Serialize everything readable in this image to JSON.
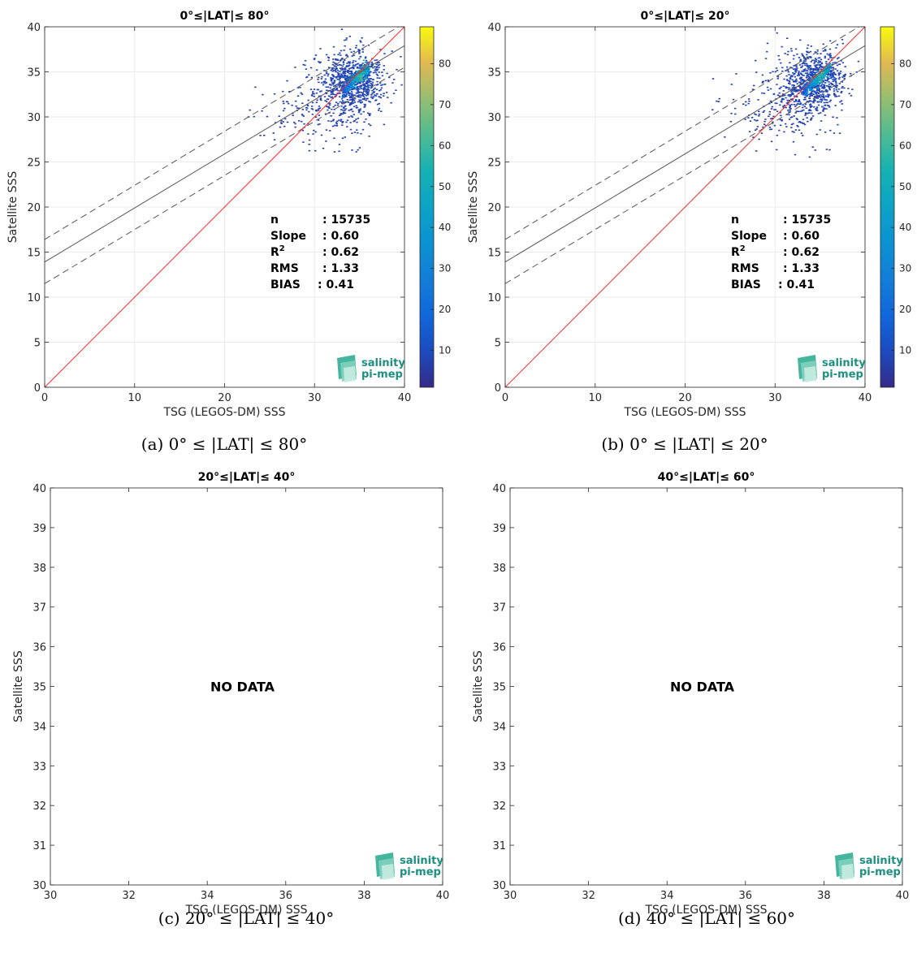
{
  "chart_data": [
    {
      "type": "scatter",
      "panel": "a",
      "title": "0°≤|LAT|≤ 80°",
      "caption": "(a) 0° ≤ |LAT| ≤ 80°",
      "xlabel": "TSG (LEGOS-DM) SSS",
      "ylabel": "Satellite SSS",
      "xlim": [
        0,
        40
      ],
      "ylim": [
        0,
        40
      ],
      "xticks": [
        0,
        10,
        20,
        30,
        40
      ],
      "yticks": [
        0,
        5,
        10,
        15,
        20,
        25,
        30,
        35,
        40
      ],
      "grid": true,
      "lines": {
        "identity": {
          "slope": 1,
          "intercept": 0,
          "color": "#ff2a2a"
        },
        "fit": {
          "slope": 0.6,
          "intercept": 13.9,
          "color": "#555555"
        },
        "fit_upper": {
          "slope": 0.6,
          "intercept": 16.4,
          "color": "#555555"
        },
        "fit_lower": {
          "slope": 0.6,
          "intercept": 11.5,
          "color": "#555555"
        }
      },
      "stats": [
        {
          "label": "n",
          "value": ": 15735"
        },
        {
          "label": "Slope",
          "value": ": 0.60"
        },
        {
          "label": "R",
          "sup": "2",
          "value": ": 0.62"
        },
        {
          "label": "RMS",
          "value": ": 1.33"
        },
        {
          "label": "BIAS",
          "value": ": 0.41"
        }
      ],
      "colorbar": {
        "min": 1,
        "max": 89,
        "ticks": [
          10,
          20,
          30,
          40,
          50,
          60,
          70,
          80
        ]
      },
      "density": [
        {
          "x": 34.5,
          "y": 34.2,
          "sx": 1.6,
          "sy": 1.6,
          "n": 650
        },
        {
          "x": 32.5,
          "y": 32.5,
          "sx": 2.2,
          "sy": 2.4,
          "n": 260
        },
        {
          "x": 29.5,
          "y": 30.8,
          "sx": 3.0,
          "sy": 2.2,
          "n": 110
        }
      ],
      "core": {
        "x0": 33.0,
        "x1": 36.0,
        "slope": 0.9,
        "intercept": 3.2
      }
    },
    {
      "type": "scatter",
      "panel": "b",
      "title": "0°≤|LAT|≤ 20°",
      "caption": "(b) 0° ≤ |LAT| ≤ 20°",
      "xlabel": "TSG (LEGOS-DM) SSS",
      "ylabel": "Satellite SSS",
      "xlim": [
        0,
        40
      ],
      "ylim": [
        0,
        40
      ],
      "xticks": [
        0,
        10,
        20,
        30,
        40
      ],
      "yticks": [
        0,
        5,
        10,
        15,
        20,
        25,
        30,
        35,
        40
      ],
      "grid": true,
      "lines": {
        "identity": {
          "slope": 1,
          "intercept": 0,
          "color": "#ff2a2a"
        },
        "fit": {
          "slope": 0.6,
          "intercept": 13.9,
          "color": "#555555"
        },
        "fit_upper": {
          "slope": 0.6,
          "intercept": 16.4,
          "color": "#555555"
        },
        "fit_lower": {
          "slope": 0.6,
          "intercept": 11.5,
          "color": "#555555"
        }
      },
      "stats": [
        {
          "label": "n",
          "value": ": 15735"
        },
        {
          "label": "Slope",
          "value": ": 0.60"
        },
        {
          "label": "R",
          "sup": "2",
          "value": ": 0.62"
        },
        {
          "label": "RMS",
          "value": ": 1.33"
        },
        {
          "label": "BIAS",
          "value": ": 0.41"
        }
      ],
      "colorbar": {
        "min": 1,
        "max": 89,
        "ticks": [
          10,
          20,
          30,
          40,
          50,
          60,
          70,
          80
        ]
      },
      "density": [
        {
          "x": 34.5,
          "y": 34.2,
          "sx": 1.6,
          "sy": 1.6,
          "n": 650
        },
        {
          "x": 32.5,
          "y": 32.5,
          "sx": 2.2,
          "sy": 2.4,
          "n": 260
        },
        {
          "x": 29.5,
          "y": 30.8,
          "sx": 3.0,
          "sy": 2.2,
          "n": 110
        }
      ],
      "core": {
        "x0": 33.0,
        "x1": 36.0,
        "slope": 0.9,
        "intercept": 3.2
      }
    },
    {
      "type": "scatter",
      "panel": "c",
      "title": "20°≤|LAT|≤ 40°",
      "caption": "(c) 20° ≤ |LAT| ≤ 40°",
      "xlabel": "TSG (LEGOS-DM) SSS",
      "ylabel": "Satellite SSS",
      "xlim": [
        30,
        40
      ],
      "ylim": [
        30,
        40
      ],
      "xticks": [
        30,
        32,
        34,
        36,
        38,
        40
      ],
      "yticks": [
        30,
        31,
        32,
        33,
        34,
        35,
        36,
        37,
        38,
        39,
        40
      ],
      "grid": false,
      "annotation": "NO DATA"
    },
    {
      "type": "scatter",
      "panel": "d",
      "title": "40°≤|LAT|≤ 60°",
      "caption": "(d) 40° ≤ |LAT| ≤ 60°",
      "xlabel": "TSG (LEGOS-DM) SSS",
      "ylabel": "Satellite SSS",
      "xlim": [
        30,
        40
      ],
      "ylim": [
        30,
        40
      ],
      "xticks": [
        30,
        32,
        34,
        36,
        38,
        40
      ],
      "yticks": [
        30,
        31,
        32,
        33,
        34,
        35,
        36,
        37,
        38,
        39,
        40
      ],
      "grid": false,
      "annotation": "NO DATA"
    }
  ],
  "logo": {
    "line1": "salinity",
    "line2": "pi-mep",
    "color": "#1d8f80"
  }
}
